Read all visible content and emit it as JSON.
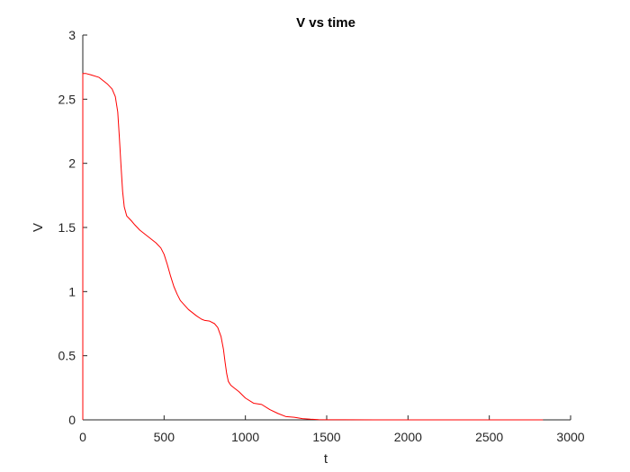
{
  "chart_data": {
    "type": "line",
    "title": "V vs time",
    "xlabel": "t",
    "ylabel": "V",
    "xlim": [
      0,
      3000
    ],
    "ylim": [
      0,
      3
    ],
    "grid": false,
    "legend": "none",
    "x_ticks": [
      0,
      500,
      1000,
      1500,
      2000,
      2500,
      3000
    ],
    "x_tick_labels": [
      "0",
      "500",
      "1000",
      "1500",
      "2000",
      "2500",
      "3000"
    ],
    "y_ticks": [
      0,
      0.5,
      1,
      1.5,
      2,
      2.5,
      3
    ],
    "y_tick_labels": [
      "0",
      "0.5",
      "1",
      "1.5",
      "2",
      "2.5",
      "3"
    ],
    "series": [
      {
        "name": "V",
        "color": "#ff0000",
        "x": [
          0,
          0,
          20,
          50,
          100,
          150,
          180,
          200,
          215,
          225,
          235,
          245,
          255,
          270,
          285,
          300,
          320,
          350,
          400,
          450,
          480,
          500,
          520,
          540,
          560,
          580,
          600,
          650,
          700,
          730,
          750,
          780,
          810,
          830,
          850,
          865,
          875,
          885,
          895,
          910,
          930,
          960,
          1000,
          1050,
          1100,
          1150,
          1200,
          1250,
          1300,
          1350,
          1400,
          1450,
          1500,
          1600,
          1800,
          2000,
          2200,
          2500,
          2830
        ],
        "y": [
          0,
          2.7,
          2.7,
          2.69,
          2.67,
          2.62,
          2.58,
          2.52,
          2.4,
          2.2,
          1.98,
          1.78,
          1.66,
          1.59,
          1.57,
          1.55,
          1.52,
          1.48,
          1.43,
          1.38,
          1.34,
          1.29,
          1.21,
          1.12,
          1.04,
          0.98,
          0.93,
          0.86,
          0.81,
          0.785,
          0.775,
          0.77,
          0.75,
          0.72,
          0.65,
          0.55,
          0.45,
          0.36,
          0.3,
          0.27,
          0.25,
          0.22,
          0.17,
          0.13,
          0.12,
          0.08,
          0.05,
          0.025,
          0.02,
          0.01,
          0.005,
          0.002,
          0.001,
          0.0005,
          0.0002,
          0.0001,
          0,
          0,
          0
        ]
      }
    ]
  }
}
